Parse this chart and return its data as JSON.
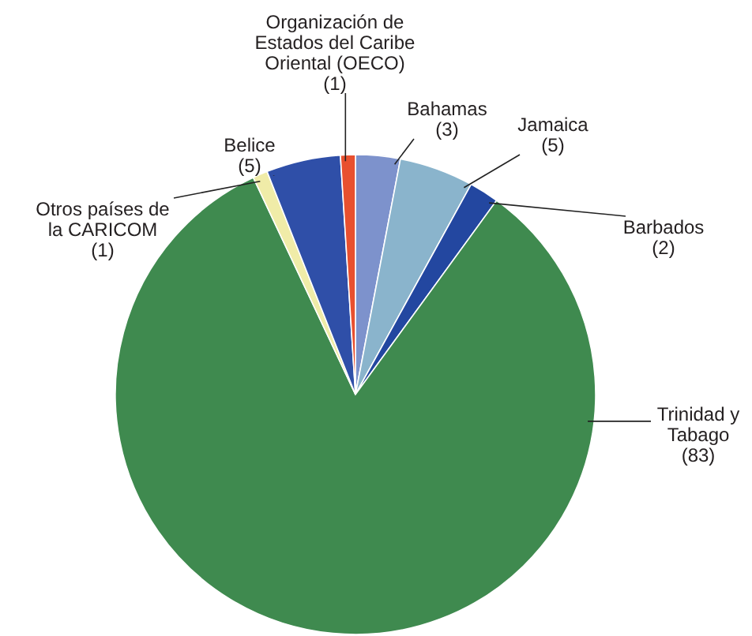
{
  "chart_data": {
    "type": "pie",
    "categories": [
      "Bahamas",
      "Jamaica",
      "Barbados",
      "Trinidad y Tabago",
      "Otros países de la CARICOM",
      "Belice",
      "Organización de Estados del Caribe Oriental (OECO)"
    ],
    "values": [
      3,
      5,
      2,
      83,
      1,
      5,
      1
    ],
    "colors": [
      "#7d92cc",
      "#8ab4cc",
      "#2347a0",
      "#3f8a4f",
      "#f0eca8",
      "#2f4fa8",
      "#e8502f"
    ],
    "value_labels": [
      "(3)",
      "(5)",
      "(2)",
      "(83)",
      "(1)",
      "(5)",
      "(1)"
    ]
  }
}
